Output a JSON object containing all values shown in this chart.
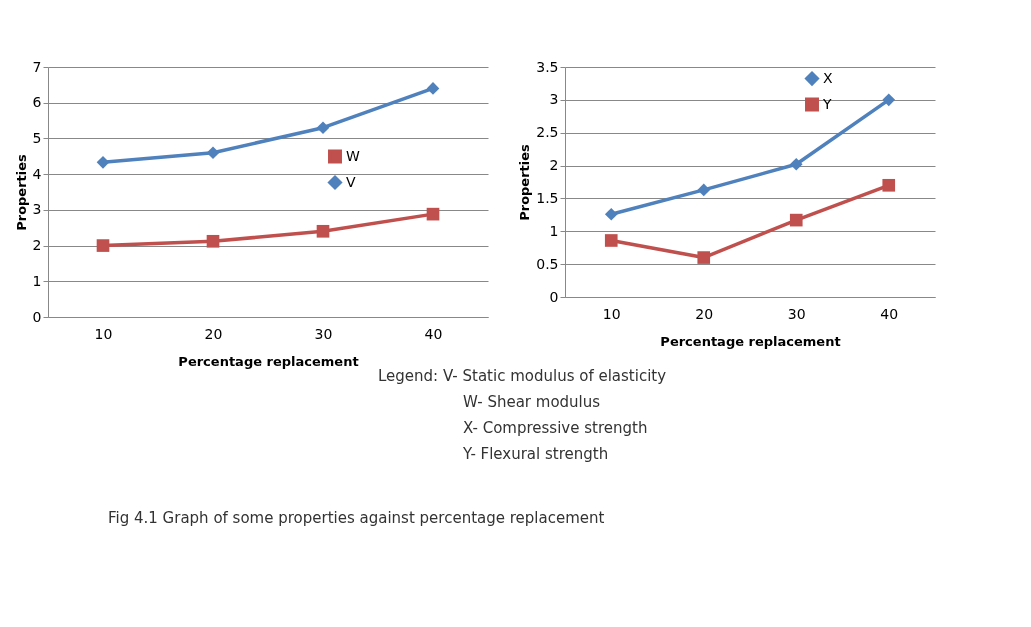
{
  "chart_data": [
    {
      "type": "line",
      "categories": [
        "10",
        "20",
        "30",
        "40"
      ],
      "xlabel": "Percentage replacement",
      "ylabel": "Properties",
      "ylim": [
        0,
        7
      ],
      "yticks": [
        0,
        1,
        2,
        3,
        4,
        5,
        6,
        7
      ],
      "grid": "y",
      "legend": "right",
      "series": [
        {
          "name": "W",
          "color": "#c0504d",
          "marker": "square",
          "values": [
            2.0,
            2.12,
            2.4,
            2.88
          ]
        },
        {
          "name": "V",
          "color": "#4f81bd",
          "marker": "diamond",
          "values": [
            4.33,
            4.6,
            5.3,
            6.4
          ]
        }
      ],
      "annotations": [
        "Legend: V- Static modulus of elasticity",
        "W- Shear modulus",
        "X- Compressive strength",
        "Y- Flexural strength",
        "Fig 4.1 Graph of some properties against percentage replacement"
      ]
    },
    {
      "type": "line",
      "categories": [
        "10",
        "20",
        "30",
        "40"
      ],
      "xlabel": "Percentage replacement",
      "ylabel": "Properties",
      "ylim": [
        0,
        3.5
      ],
      "yticks": [
        0,
        0.5,
        1,
        1.5,
        2,
        2.5,
        3,
        3.5
      ],
      "grid": "y",
      "legend": "top right",
      "series": [
        {
          "name": "X",
          "color": "#4f81bd",
          "marker": "diamond",
          "values": [
            1.26,
            1.63,
            2.02,
            3.0
          ]
        },
        {
          "name": "Y",
          "color": "#c0504d",
          "marker": "square",
          "values": [
            0.86,
            0.6,
            1.17,
            1.7
          ]
        }
      ]
    }
  ]
}
